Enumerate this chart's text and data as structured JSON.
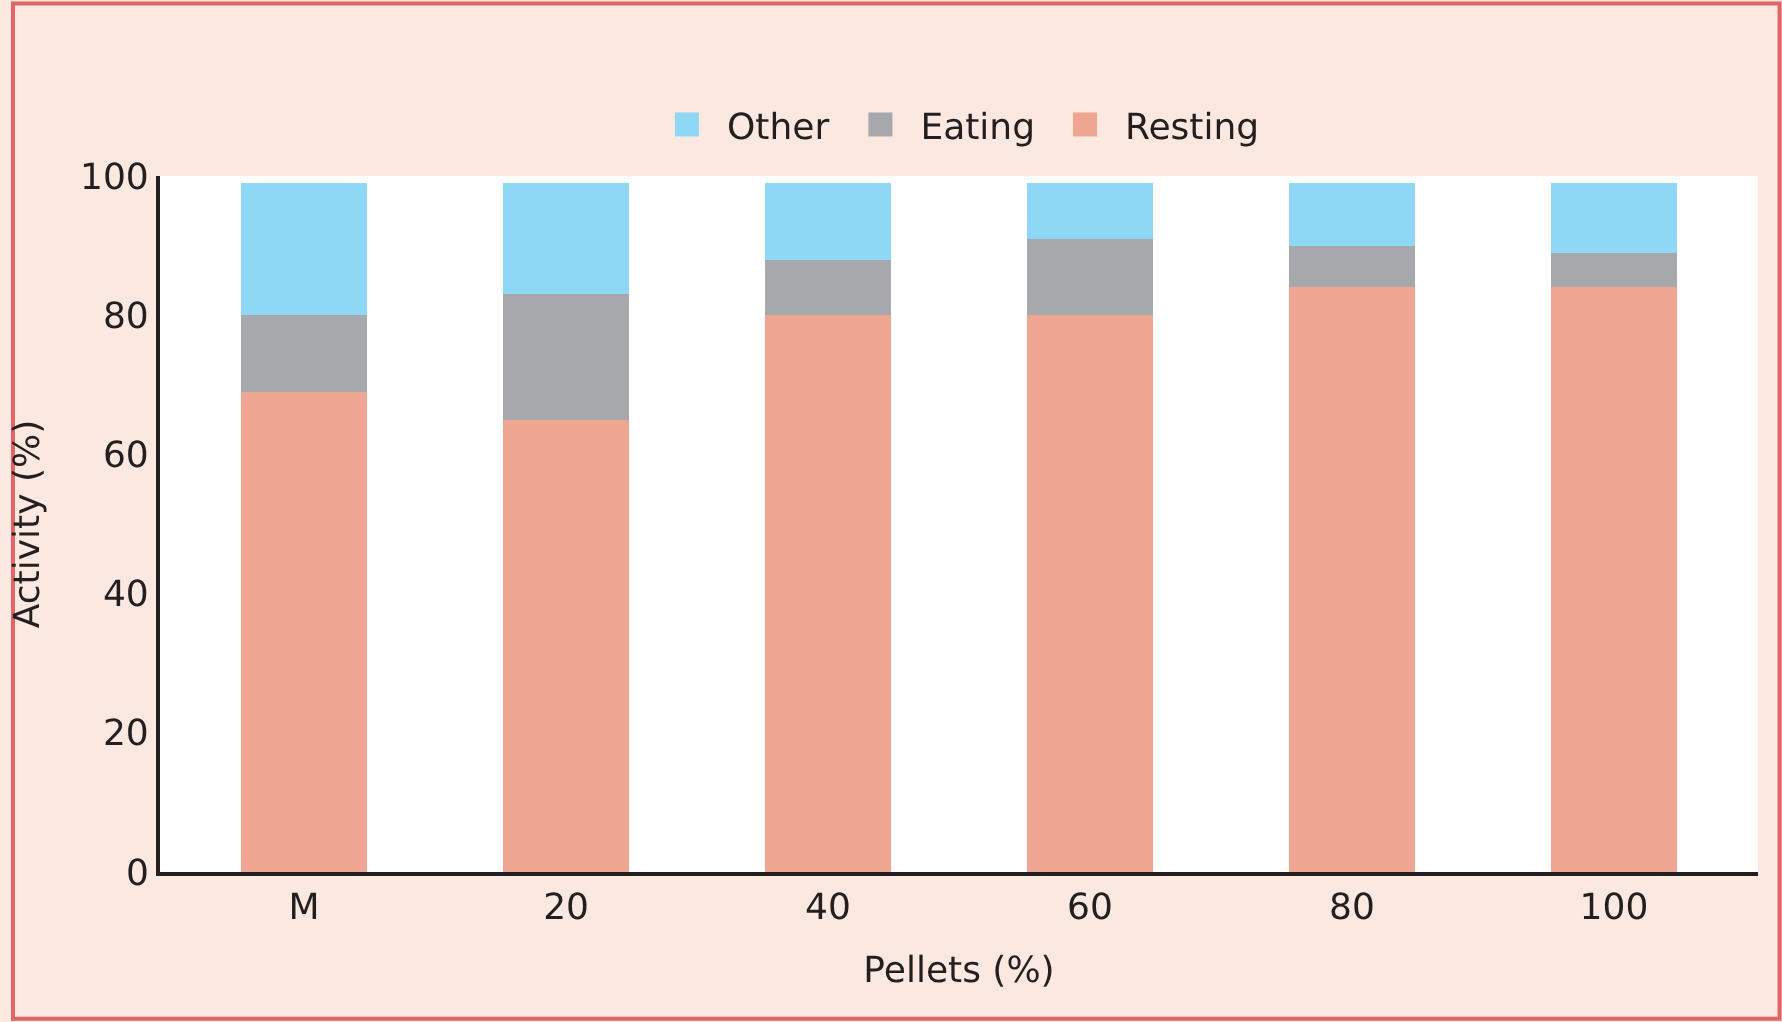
{
  "chart_data": {
    "type": "bar",
    "stacked": true,
    "xlabel": "Pellets (%)",
    "ylabel": "Activity (%)",
    "categories": [
      "M",
      "20",
      "40",
      "60",
      "80",
      "100"
    ],
    "series": [
      {
        "name": "Resting",
        "color": "#eea591",
        "values": [
          69,
          65,
          80,
          80,
          84,
          84
        ]
      },
      {
        "name": "Eating",
        "color": "#a7a8ab",
        "values": [
          11,
          18,
          8,
          11,
          6,
          5
        ]
      },
      {
        "name": "Other",
        "color": "#8ed8f5",
        "values": [
          19,
          16,
          11,
          8,
          9,
          10
        ]
      }
    ],
    "ylim": [
      0,
      100
    ],
    "yticks": [
      0,
      20,
      40,
      60,
      80,
      100
    ],
    "legend": "top"
  }
}
